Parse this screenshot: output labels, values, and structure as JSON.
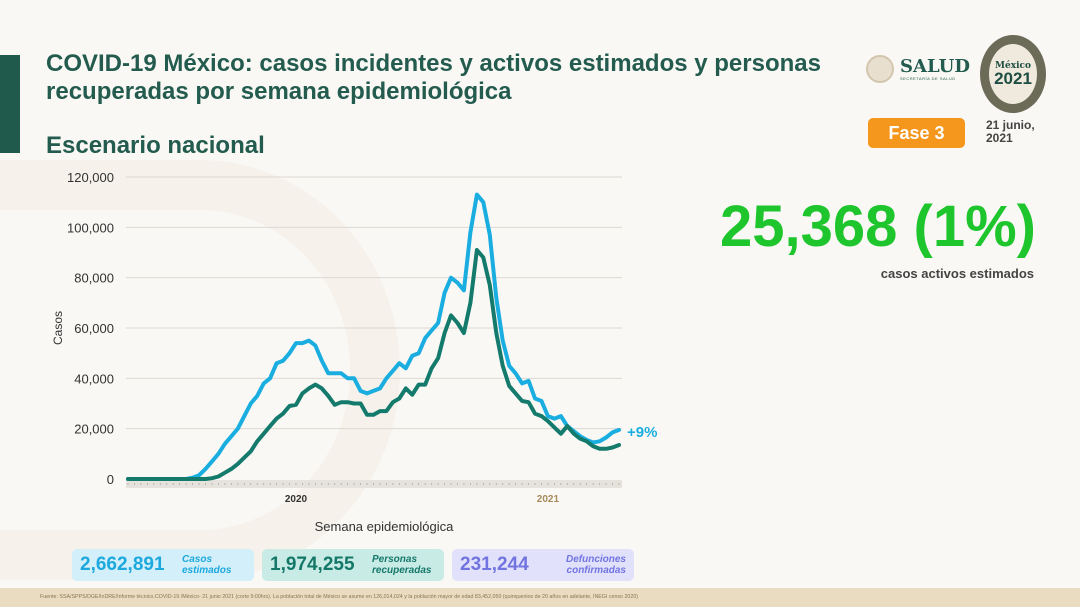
{
  "header": {
    "title": "COVID-19 México: casos incidentes y activos estimados y personas recuperadas por semana epidemiológica",
    "subtitle": "Escenario nacional"
  },
  "logos": {
    "salud": "SALUD",
    "salud_sub": "SECRETARÍA DE SALUD",
    "anniv_top": "México",
    "anniv_year": "2021"
  },
  "badge": {
    "fase": "Fase 3",
    "date": "21 junio, 2021"
  },
  "highlight": {
    "value": "25,368 (1%)",
    "label": "casos activos estimados"
  },
  "stats": [
    {
      "value": "2,662,891",
      "label": "Casos estimados"
    },
    {
      "value": "1,974,255",
      "label": "Personas recuperadas"
    },
    {
      "value": "231,244",
      "label": "Defunciones confirmadas"
    }
  ],
  "footer": "Fuente: SSA/SPPS/DGE/InDRE/Informe técnico.COVID-19 /México- 21 junio 2021 (corte 9:00hrs). La población total de México se asume en 126,014,024 y la población mayor de edad 83,452,050 (quinquenios de 20 años en adelante, INEGI censo 2020)",
  "colors": {
    "blue": "#1aaee0",
    "green": "#137a6c",
    "highlight": "#1ec52d",
    "title": "#235b4e"
  },
  "chart_data": {
    "type": "line",
    "xlabel": "Semana epidemiológica",
    "ylabel": "Casos",
    "ylim": [
      0,
      120000
    ],
    "yticks": [
      0,
      20000,
      40000,
      60000,
      80000,
      100000,
      120000
    ],
    "ytick_labels": [
      "0",
      "20,000",
      "40,000",
      "60,000",
      "80,000",
      "100,000",
      "120,000"
    ],
    "year_labels": [
      {
        "label": "2020",
        "week_index": 26
      },
      {
        "label": "2021",
        "week_index": 65
      }
    ],
    "annotation": "+9%",
    "n_weeks": 77,
    "series": [
      {
        "color": "#1aaee0",
        "values": [
          0,
          0,
          0,
          0,
          0,
          0,
          0,
          0,
          0,
          0,
          500,
          1500,
          4000,
          7000,
          10000,
          14000,
          17000,
          20000,
          25000,
          30000,
          33000,
          38000,
          40000,
          46000,
          47000,
          50000,
          54000,
          54000,
          55000,
          53000,
          47000,
          42000,
          42000,
          42000,
          40000,
          40000,
          35000,
          34000,
          35000,
          36000,
          40000,
          43000,
          46000,
          44000,
          49000,
          50000,
          56000,
          59000,
          62000,
          74000,
          80000,
          78000,
          75000,
          98000,
          113000,
          110000,
          97000,
          72000,
          55000,
          45000,
          42000,
          38000,
          39000,
          32000,
          31000,
          25000,
          24000,
          25000,
          21000,
          19000,
          17000,
          15500,
          14500,
          15000,
          16500,
          18500,
          19500
        ]
      },
      {
        "color": "#137a6c",
        "values": [
          0,
          0,
          0,
          0,
          0,
          0,
          0,
          0,
          0,
          0,
          0,
          0,
          0,
          300,
          1000,
          2500,
          4000,
          6000,
          8500,
          11000,
          15000,
          18000,
          21000,
          24000,
          26000,
          29000,
          29500,
          34000,
          36000,
          37500,
          36000,
          33000,
          29500,
          30500,
          30500,
          30000,
          30000,
          25500,
          25500,
          27000,
          27000,
          30500,
          32000,
          36000,
          33500,
          37500,
          37500,
          44000,
          48000,
          58000,
          65000,
          62000,
          58000,
          70000,
          91000,
          88000,
          77000,
          58000,
          45000,
          37000,
          34000,
          31000,
          30500,
          26000,
          25000,
          23000,
          20500,
          18000,
          21000,
          18000,
          16000,
          15000,
          13000,
          12000,
          12000,
          12500,
          13500
        ]
      }
    ]
  }
}
